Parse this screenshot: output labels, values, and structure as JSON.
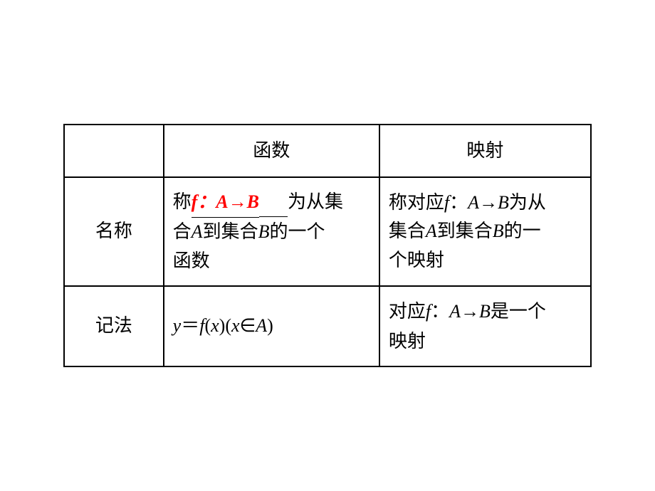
{
  "table": {
    "border_color": "#000000",
    "border_width": 2,
    "background_color": "#ffffff",
    "font_size": 26,
    "columns": {
      "col1_width": 140,
      "col2_width": 304,
      "col3_width": 298
    },
    "header": {
      "c1": "",
      "c2": "函数",
      "c3": "映射"
    },
    "row_name": {
      "label": "名称",
      "function_cell": {
        "prefix": "称",
        "highlight_text": "f：A→B",
        "highlight_color": "#ff0000",
        "suffix_line1": "为从集",
        "line2": "合",
        "line2_var1": "A",
        "line2_mid": "到集合",
        "line2_var2": "B",
        "line2_end": "的一个",
        "line3": "函数"
      },
      "mapping_cell": {
        "prefix": "称对应",
        "var_f": "f",
        "colon": "：",
        "var_ab": "A→B",
        "suffix1": "为从",
        "line2_pre": "集合",
        "line2_var1": "A",
        "line2_mid": "到集合",
        "line2_var2": "B",
        "line2_end": "的一",
        "line3": "个映射"
      }
    },
    "row_notation": {
      "label": "记法",
      "function_cell": {
        "var_y": "y",
        "equals": "＝",
        "var_f": "f",
        "paren_open": "(",
        "var_x1": "x",
        "paren_close": ")(",
        "var_x2": "x",
        "in_symbol": "∈",
        "var_a": "A",
        "end": ")"
      },
      "mapping_cell": {
        "prefix": "对应",
        "var_f": "f",
        "colon": "：",
        "var_ab": "A→B",
        "suffix": "是一个",
        "line2": "映射"
      }
    }
  }
}
